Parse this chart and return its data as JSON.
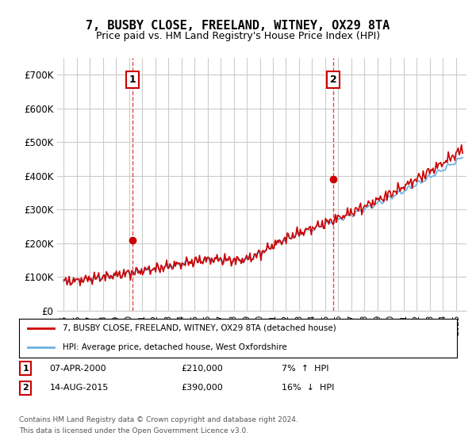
{
  "title": "7, BUSBY CLOSE, FREELAND, WITNEY, OX29 8TA",
  "subtitle": "Price paid vs. HM Land Registry's House Price Index (HPI)",
  "ylim": [
    0,
    750000
  ],
  "yticks": [
    0,
    100000,
    200000,
    300000,
    400000,
    500000,
    600000,
    700000
  ],
  "ytick_labels": [
    "£0",
    "£100K",
    "£200K",
    "£300K",
    "£400K",
    "£500K",
    "£600K",
    "£700K"
  ],
  "hpi_color": "#6ab0e0",
  "price_color": "#cc0000",
  "marker1_price": 210000,
  "marker2_price": 390000,
  "marker1_year": 2000.27,
  "marker2_year": 2015.62,
  "legend_line1": "7, BUSBY CLOSE, FREELAND, WITNEY, OX29 8TA (detached house)",
  "legend_line2": "HPI: Average price, detached house, West Oxfordshire",
  "footer1": "Contains HM Land Registry data © Crown copyright and database right 2024.",
  "footer2": "This data is licensed under the Open Government Licence v3.0.",
  "background_color": "#ffffff",
  "plot_bg_color": "#ffffff",
  "grid_color": "#cccccc"
}
